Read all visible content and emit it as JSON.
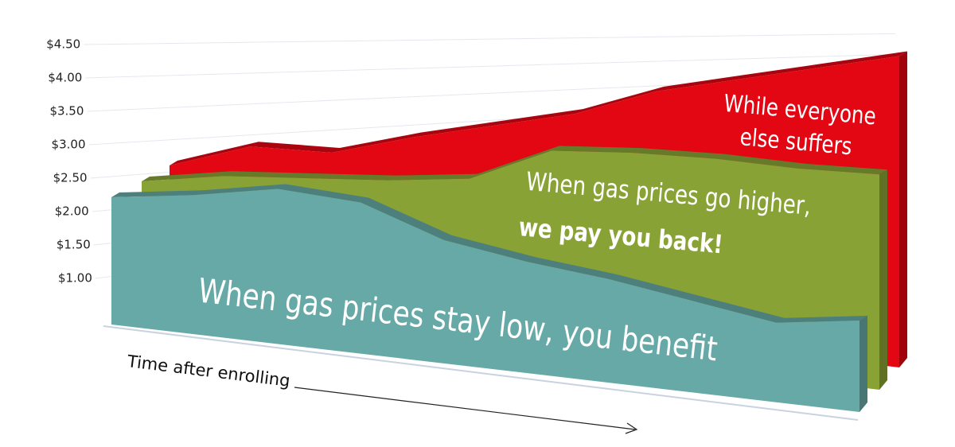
{
  "chart_data": {
    "type": "area",
    "x_label": "Time after enrolling",
    "ylim": [
      0.5,
      4.5
    ],
    "yticks": [
      {
        "value": 1.0,
        "label": "$1.00"
      },
      {
        "value": 1.5,
        "label": "$1.50"
      },
      {
        "value": 2.0,
        "label": "$2.00"
      },
      {
        "value": 2.5,
        "label": "$2.50"
      },
      {
        "value": 3.0,
        "label": "$3.00"
      },
      {
        "value": 3.5,
        "label": "$3.50"
      },
      {
        "value": 4.0,
        "label": "$4.00"
      },
      {
        "value": 4.5,
        "label": "$4.50"
      }
    ],
    "grid": true,
    "series": [
      {
        "color": "#e30613",
        "values": [
          2.1,
          2.5,
          2.55,
          2.9,
          3.2,
          3.5,
          3.95,
          4.25,
          4.55,
          4.85
        ],
        "annotation": [
          "While everyone",
          "else suffers"
        ]
      },
      {
        "color": "#89a236",
        "values": [
          2.1,
          2.3,
          2.4,
          2.5,
          2.65,
          3.15,
          3.25,
          3.3,
          3.3,
          3.35
        ],
        "annotation": [
          "When gas prices go higher,",
          "we pay you back!"
        ]
      },
      {
        "color": "#66a9a7",
        "values": [
          2.1,
          2.25,
          2.45,
          2.4,
          2.05,
          1.9,
          1.8,
          1.65,
          1.5,
          1.65
        ],
        "annotation": [
          "When gas prices stay low, you benefit"
        ]
      }
    ]
  }
}
